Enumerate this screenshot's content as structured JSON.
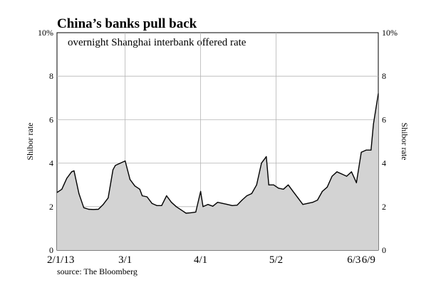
{
  "chart_data": {
    "type": "area",
    "title": "China’s banks pull back",
    "subtitle": "overnight Shanghai interbank offered rate",
    "ylabel_left": "Shibor rate",
    "ylabel_right": "Shibor rate",
    "source": "source: The Bloomberg",
    "y_ticks": [
      "0",
      "2",
      "4",
      "6",
      "8",
      "10%"
    ],
    "ylim": [
      0,
      10
    ],
    "x_ticks": [
      {
        "label": "2/1/13",
        "date": "2013-02-01"
      },
      {
        "label": "3/1",
        "date": "2013-03-01"
      },
      {
        "label": "4/1",
        "date": "2013-04-01"
      },
      {
        "label": "5/2",
        "date": "2013-05-02"
      },
      {
        "label": "6/3",
        "date": "2013-06-03"
      },
      {
        "label": "6/9",
        "date": "2013-06-09"
      }
    ],
    "xlim": [
      "2013-02-01",
      "2013-06-13"
    ],
    "grid": true,
    "fill_color": "#d3d3d3",
    "line_color": "#000000",
    "series": [
      {
        "x": [
          "2013-02-01",
          "2013-02-03",
          "2013-02-05",
          "2013-02-07",
          "2013-02-08",
          "2013-02-10",
          "2013-02-12",
          "2013-02-14",
          "2013-02-16",
          "2013-02-18",
          "2013-02-20",
          "2013-02-22",
          "2013-02-24",
          "2013-02-25",
          "2013-02-27",
          "2013-03-01",
          "2013-03-03",
          "2013-03-05",
          "2013-03-07",
          "2013-03-08",
          "2013-03-10",
          "2013-03-12",
          "2013-03-14",
          "2013-03-16",
          "2013-03-18",
          "2013-03-20",
          "2013-03-22",
          "2013-03-24",
          "2013-03-26",
          "2013-03-28",
          "2013-03-30",
          "2013-04-01",
          "2013-04-02",
          "2013-04-04",
          "2013-04-06",
          "2013-04-08",
          "2013-04-10",
          "2013-04-12",
          "2013-04-14",
          "2013-04-16",
          "2013-04-18",
          "2013-04-20",
          "2013-04-22",
          "2013-04-24",
          "2013-04-26",
          "2013-04-28",
          "2013-04-29",
          "2013-05-01",
          "2013-05-03",
          "2013-05-05",
          "2013-05-07",
          "2013-05-09",
          "2013-05-11",
          "2013-05-13",
          "2013-05-15",
          "2013-05-17",
          "2013-05-19",
          "2013-05-21",
          "2013-05-23",
          "2013-05-25",
          "2013-05-27",
          "2013-05-29",
          "2013-05-31",
          "2013-06-02",
          "2013-06-04",
          "2013-06-06",
          "2013-06-08",
          "2013-06-10",
          "2013-06-11",
          "2013-06-13"
        ],
        "values": [
          2.65,
          2.8,
          3.3,
          3.6,
          3.65,
          2.6,
          1.95,
          1.88,
          1.87,
          1.88,
          2.1,
          2.4,
          3.7,
          3.9,
          4.0,
          4.1,
          3.25,
          2.95,
          2.8,
          2.5,
          2.45,
          2.15,
          2.05,
          2.05,
          2.5,
          2.2,
          2.0,
          1.85,
          1.7,
          1.72,
          1.75,
          2.7,
          2.0,
          2.1,
          2.02,
          2.2,
          2.15,
          2.1,
          2.05,
          2.07,
          2.3,
          2.5,
          2.6,
          3.0,
          4.0,
          4.3,
          3.0,
          3.0,
          2.85,
          2.8,
          3.0,
          2.7,
          2.4,
          2.1,
          2.15,
          2.2,
          2.3,
          2.7,
          2.9,
          3.4,
          3.6,
          3.5,
          3.4,
          3.6,
          3.1,
          4.5,
          4.6,
          4.6,
          5.8,
          7.2
        ]
      }
    ]
  }
}
